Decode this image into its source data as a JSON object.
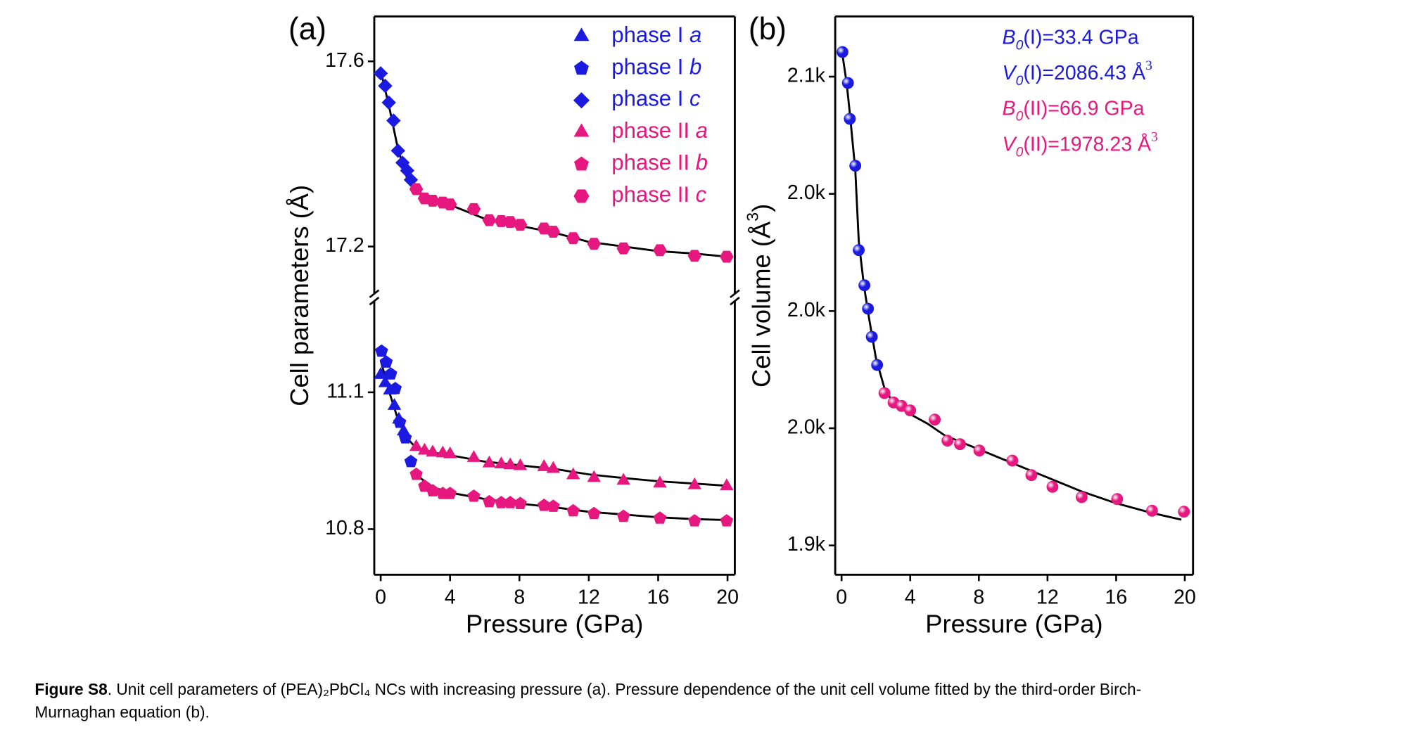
{
  "chart_data": [
    {
      "type": "scatter",
      "panel_label": "(a)",
      "xlabel": "Pressure (GPa)",
      "ylabel": "Cell parameters (Å)",
      "xlim": [
        -0.37,
        20.42
      ],
      "xticks": [
        0,
        4,
        8,
        12,
        16,
        20
      ],
      "segments": [
        {
          "ylim": [
            17.098,
            17.697
          ],
          "yticks": [
            17.2,
            17.6
          ]
        },
        {
          "ylim": [
            10.7,
            11.3
          ],
          "yticks": [
            10.8,
            11.1
          ]
        }
      ],
      "series": [
        {
          "name": "phase I a",
          "color": "#1a1ae0",
          "marker": "triangle",
          "x": [
            0,
            0.26,
            0.53,
            0.79,
            1.05,
            1.32
          ],
          "values": [
            11.138,
            11.12,
            11.104,
            11.07,
            11.04,
            11.014
          ]
        },
        {
          "name": "phase I b",
          "color": "#1a1ae0",
          "marker": "pentagon",
          "x": [
            0.05,
            0.32,
            0.58,
            0.84,
            1.1,
            1.42,
            1.74
          ],
          "values": [
            11.19,
            11.166,
            11.14,
            11.108,
            11.034,
            11.0,
            10.948
          ]
        },
        {
          "name": "phase I c",
          "color": "#1a1ae0",
          "marker": "diamond",
          "x": [
            0,
            0.26,
            0.47,
            0.74,
            1.0,
            1.26,
            1.53,
            1.74
          ],
          "values": [
            17.574,
            17.547,
            17.511,
            17.472,
            17.407,
            17.381,
            17.364,
            17.344
          ]
        },
        {
          "name": "phase II a",
          "color": "#e6177f",
          "marker": "triangle",
          "x": [
            2.05,
            2.53,
            3.0,
            3.58,
            4.0,
            5.37,
            6.26,
            6.95,
            7.47,
            8.05,
            9.42,
            9.95,
            11.1,
            12.3,
            14.0,
            16.1,
            18.1,
            19.95
          ],
          "values": [
            10.98,
            10.972,
            10.968,
            10.966,
            10.964,
            10.956,
            10.944,
            10.942,
            10.94,
            10.938,
            10.936,
            10.932,
            10.918,
            10.912,
            10.906,
            10.9,
            10.896,
            10.894
          ]
        },
        {
          "name": "phase II b",
          "color": "#e6177f",
          "marker": "pentagon",
          "x": [
            2.05,
            2.53,
            3.0,
            3.58,
            4.0,
            5.37,
            6.26,
            6.95,
            7.47,
            8.05,
            9.42,
            9.95,
            11.1,
            12.3,
            14.0,
            16.1,
            18.1,
            19.95
          ],
          "values": [
            10.92,
            10.894,
            10.884,
            10.878,
            10.878,
            10.872,
            10.86,
            10.858,
            10.858,
            10.856,
            10.852,
            10.85,
            10.84,
            10.834,
            10.828,
            10.824,
            10.818,
            10.818
          ]
        },
        {
          "name": "phase II c",
          "color": "#e6177f",
          "marker": "hexagon",
          "x": [
            2.05,
            2.53,
            3.0,
            3.58,
            4.0,
            5.37,
            6.26,
            6.95,
            7.47,
            8.05,
            9.42,
            9.95,
            11.1,
            12.3,
            14.0,
            16.1,
            18.1,
            19.95
          ],
          "values": [
            17.324,
            17.304,
            17.299,
            17.295,
            17.291,
            17.281,
            17.257,
            17.255,
            17.253,
            17.247,
            17.239,
            17.232,
            17.218,
            17.206,
            17.196,
            17.192,
            17.18,
            17.178
          ]
        }
      ],
      "fits": [
        {
          "color": "#000000",
          "x": [
            0,
            0.5,
            1,
            1.5,
            2,
            3,
            4,
            6,
            8,
            10,
            12,
            14,
            16,
            18,
            20
          ],
          "values": [
            17.58,
            17.5,
            17.41,
            17.35,
            17.32,
            17.3,
            17.29,
            17.26,
            17.245,
            17.23,
            17.21,
            17.2,
            17.19,
            17.185,
            17.178
          ]
        },
        {
          "color": "#000000",
          "x": [
            0,
            0.5,
            1,
            1.5,
            2,
            3,
            4,
            6,
            8,
            10,
            12,
            14,
            16,
            18,
            20
          ],
          "values": [
            11.17,
            11.1,
            11.04,
            11.0,
            10.98,
            10.968,
            10.962,
            10.948,
            10.94,
            10.932,
            10.92,
            10.912,
            10.905,
            10.9,
            10.895
          ]
        },
        {
          "color": "#000000",
          "x": [
            2,
            3,
            4,
            6,
            8,
            10,
            12,
            14,
            16,
            18,
            20
          ],
          "values": [
            10.92,
            10.892,
            10.88,
            10.866,
            10.856,
            10.848,
            10.838,
            10.832,
            10.826,
            10.822,
            10.82
          ]
        }
      ]
    },
    {
      "type": "scatter",
      "panel_label": "(b)",
      "xlabel": "Pressure (GPa)",
      "ylabel": [
        "Cell volume (Å",
        "3",
        ")"
      ],
      "xlim": [
        -0.37,
        20.48
      ],
      "xticks": [
        0,
        4,
        8,
        12,
        16,
        20
      ],
      "ylim": [
        1887.5,
        2125.7
      ],
      "yticks": [
        {
          "value": 1900,
          "label": "1.9k"
        },
        {
          "value": 1950,
          "label": "2.0k"
        },
        {
          "value": 2000,
          "label": "2.0k"
        },
        {
          "value": 2050,
          "label": "2.0k"
        },
        {
          "value": 2100,
          "label": "2.1k"
        }
      ],
      "series": [
        {
          "color": "#1a1ae0",
          "marker": "ball",
          "x": [
            0.05,
            0.37,
            0.48,
            0.8,
            1.0,
            1.33,
            1.54,
            1.76,
            2.07
          ],
          "values": [
            2110.5,
            2097.3,
            2082,
            2062,
            2026,
            2011,
            2001,
            1989,
            1977
          ]
        },
        {
          "color": "#e6177f",
          "marker": "ball",
          "x": [
            2.5,
            3.03,
            3.5,
            4.0,
            5.43,
            6.17,
            6.9,
            8.03,
            9.95,
            11.06,
            12.29,
            13.99,
            16.06,
            18.09,
            19.95
          ],
          "values": [
            1965,
            1961,
            1959.5,
            1957.6,
            1953.7,
            1944.7,
            1943.2,
            1940.5,
            1936.2,
            1930,
            1925,
            1920.6,
            1919.8,
            1914.8,
            1914.4
          ]
        }
      ],
      "fits": [
        {
          "color": "#000000",
          "x": [
            0,
            0.3,
            0.5,
            0.8,
            1.0,
            1.3,
            1.6,
            2.0,
            2.5,
            3,
            4,
            5,
            6,
            8,
            10,
            12,
            14,
            16,
            18,
            19.8
          ],
          "values": [
            2112,
            2097,
            2083,
            2060,
            2030,
            2011,
            1997,
            1980,
            1967,
            1961,
            1956,
            1952,
            1947,
            1941,
            1935,
            1929,
            1923,
            1918,
            1914,
            1911
          ]
        }
      ],
      "annotations": [
        {
          "color": "#1a1ae0",
          "symbol": "B",
          "subscript": "0",
          "text": "(I)=33.4 GPa"
        },
        {
          "color": "#1a1ae0",
          "symbol": "V",
          "subscript": "0",
          "text": "(I)=2086.43 Å",
          "superscript": "3"
        },
        {
          "color": "#e6177f",
          "symbol": "B",
          "subscript": "0",
          "text": "(II)=66.9 GPa"
        },
        {
          "color": "#e6177f",
          "symbol": "V",
          "subscript": "0",
          "text": "(II)=1978.23 Å",
          "superscript": "3"
        }
      ]
    }
  ],
  "caption": {
    "label": "Figure S8",
    "lines": [
      ". Unit cell parameters of (PEA)₂PbCl₄ NCs with increasing pressure (a). Pressure dependence of the unit cell volume fitted by the third-order Birch-",
      "Murnaghan equation (b)."
    ]
  }
}
